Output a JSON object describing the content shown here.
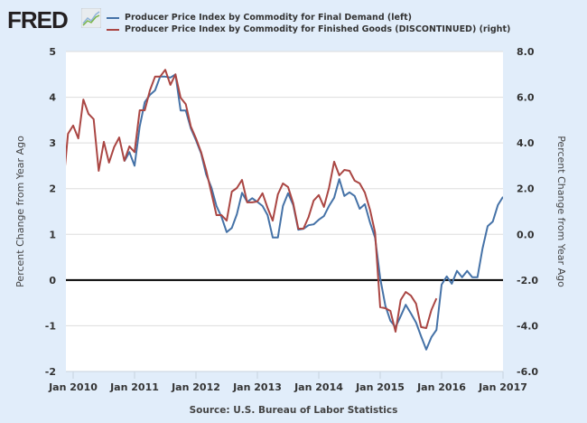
{
  "header": {
    "logo_text": "FRED",
    "logo_icon": "trend-chart-icon"
  },
  "source": "Source: U.S. Bureau of Labor Statistics",
  "chart_data": {
    "type": "line",
    "title": "",
    "xlabel": "",
    "ylabel_left": "Percent Change from Year Ago",
    "ylabel_right": "Percent Change from Year Ago",
    "x_start": "2009-11",
    "x_end": "2017-01",
    "x_ticks": [
      "Jan 2010",
      "Jan 2011",
      "Jan 2012",
      "Jan 2013",
      "Jan 2014",
      "Jan 2015",
      "Jan 2016",
      "Jan 2017"
    ],
    "ylim_left": [
      -2,
      5
    ],
    "yticks_left": [
      "-2",
      "-1",
      "0",
      "1",
      "2",
      "3",
      "4",
      "5"
    ],
    "ylim_right": [
      -6,
      8
    ],
    "yticks_right": [
      "-6.0",
      "-4.0",
      "-2.0",
      "0.0",
      "2.0",
      "4.0",
      "6.0",
      "8.0"
    ],
    "zero_line_left": 0,
    "grid": true,
    "legend_position": "top",
    "series": [
      {
        "name": "Producer Price Index by Commodity for Final Demand (left)",
        "axis": "left",
        "color": "#4572a7",
        "start": "2010-11",
        "values": [
          2.6,
          2.8,
          2.5,
          3.36,
          3.89,
          4.05,
          4.15,
          4.45,
          4.45,
          4.43,
          4.5,
          3.71,
          3.71,
          3.32,
          3.06,
          2.77,
          2.31,
          2.03,
          1.62,
          1.38,
          1.05,
          1.14,
          1.44,
          1.91,
          1.71,
          1.79,
          1.71,
          1.62,
          1.42,
          0.93,
          0.93,
          1.62,
          1.9,
          1.64,
          1.1,
          1.12,
          1.2,
          1.22,
          1.32,
          1.4,
          1.62,
          1.8,
          2.21,
          1.84,
          1.92,
          1.84,
          1.56,
          1.66,
          1.26,
          0.93,
          0.04,
          -0.56,
          -0.89,
          -1.03,
          -0.79,
          -0.54,
          -0.73,
          -0.93,
          -1.23,
          -1.52,
          -1.25,
          -1.09,
          -0.1,
          0.08,
          -0.08,
          0.2,
          0.06,
          0.2,
          0.06,
          0.06,
          0.69,
          1.18,
          1.28,
          1.64,
          1.82
        ]
      },
      {
        "name": "Producer Price Index by Commodity for Finished Goods (DISCONTINUED) (right)",
        "axis": "right",
        "color": "#aa4643",
        "start": "2009-11",
        "values": [
          2.0,
          4.4,
          4.76,
          4.2,
          5.9,
          5.27,
          5.04,
          2.78,
          4.05,
          3.14,
          3.81,
          4.24,
          3.22,
          3.85,
          3.6,
          5.43,
          5.43,
          6.3,
          6.9,
          6.9,
          7.2,
          6.54,
          7.0,
          5.98,
          5.7,
          4.72,
          4.2,
          3.6,
          2.8,
          1.83,
          0.84,
          0.84,
          0.6,
          1.87,
          2.03,
          2.38,
          1.4,
          1.4,
          1.44,
          1.8,
          1.16,
          0.6,
          1.75,
          2.23,
          2.07,
          1.36,
          0.25,
          0.25,
          0.76,
          1.48,
          1.72,
          1.2,
          2.03,
          3.18,
          2.58,
          2.82,
          2.78,
          2.35,
          2.23,
          1.83,
          1.08,
          0.09,
          -3.19,
          -3.23,
          -3.35,
          -4.26,
          -2.87,
          -2.52,
          -2.68,
          -3.03,
          -4.06,
          -4.1,
          -3.31,
          -2.8
        ]
      }
    ]
  }
}
